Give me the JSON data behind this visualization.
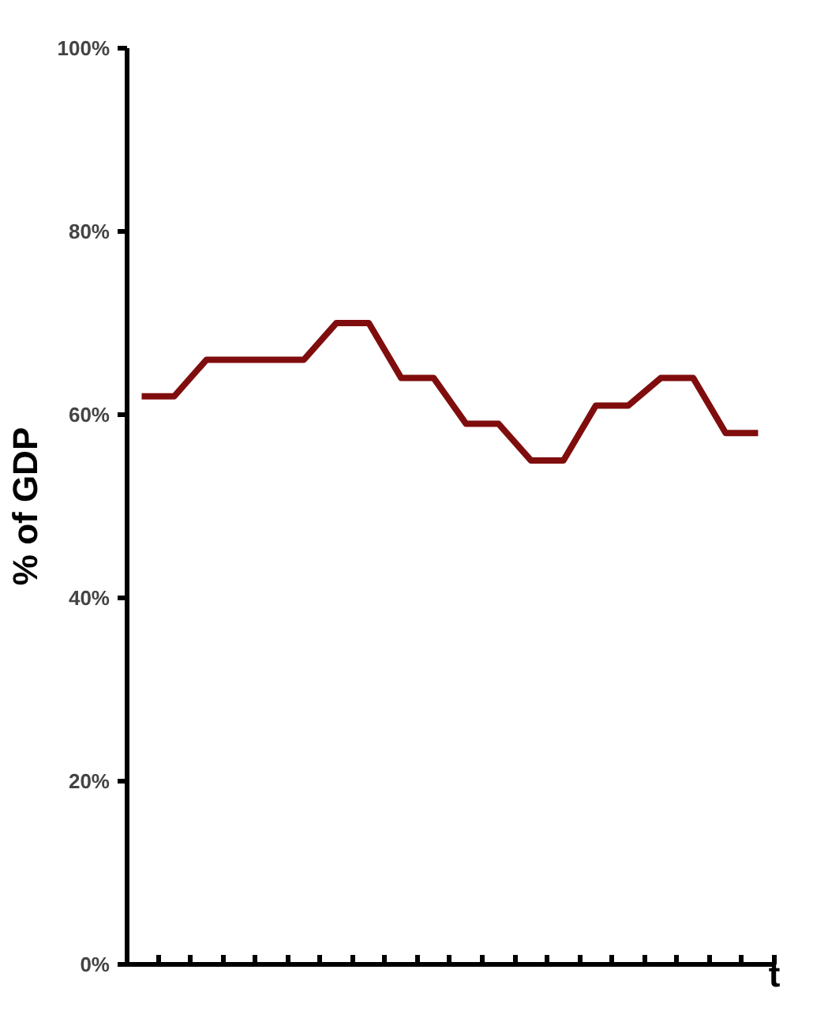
{
  "chart_data": {
    "type": "line",
    "ylabel": "% of GDP",
    "xlabel": "t",
    "categories": [
      null,
      null,
      null,
      null,
      null,
      null,
      null,
      null,
      null,
      null,
      null,
      null,
      null,
      null,
      null,
      null,
      null,
      null,
      null,
      null
    ],
    "series": [
      {
        "color": "#800d0d",
        "values": [
          62,
          62,
          66,
          66,
          66,
          66,
          70,
          70,
          64,
          64,
          59,
          59,
          55,
          55,
          61,
          61,
          64,
          64,
          58,
          58
        ]
      }
    ],
    "ylim": [
      0,
      100
    ],
    "yticks": [
      {
        "value": 0,
        "label": "0%"
      },
      {
        "value": 20,
        "label": "20%"
      },
      {
        "value": 40,
        "label": "40%"
      },
      {
        "value": 60,
        "label": "60%"
      },
      {
        "value": 80,
        "label": "80%"
      },
      {
        "value": 100,
        "label": "100%"
      }
    ],
    "grid": false,
    "marker": "none",
    "line_style": "solid"
  }
}
